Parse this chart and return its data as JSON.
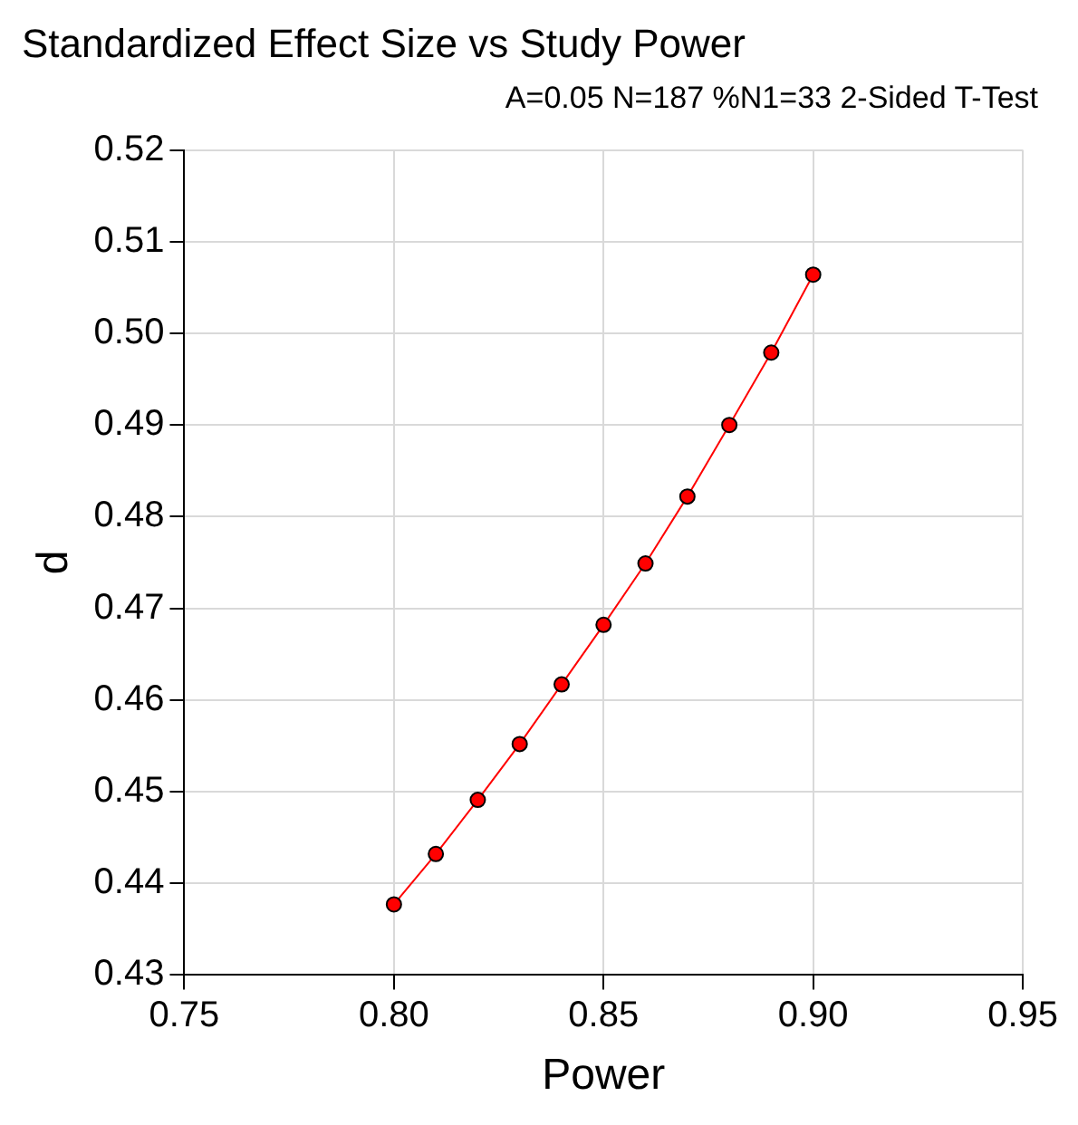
{
  "chart_data": {
    "type": "line",
    "title": "Standardized Effect Size vs Study Power",
    "subtitle": "A=0.05 N=187 %N1=33 2-Sided T-Test",
    "xlabel": "Power",
    "ylabel": "d",
    "x": [
      0.8,
      0.81,
      0.82,
      0.83,
      0.84,
      0.85,
      0.86,
      0.87,
      0.88,
      0.89,
      0.9
    ],
    "series": [
      {
        "color": "#ff0000",
        "values": [
          0.4377,
          0.4432,
          0.4491,
          0.4552,
          0.4617,
          0.4682,
          0.4749,
          0.4822,
          0.49,
          0.4979,
          0.5064
        ]
      }
    ],
    "xlim": [
      0.75,
      0.95
    ],
    "xticks": [
      0.75,
      {
        "value": 0.8,
        "label": "0.80"
      },
      0.85,
      {
        "value": 0.9,
        "label": "0.90"
      },
      0.95
    ],
    "ylim": [
      0.43,
      0.52
    ],
    "yticks": [
      0.43,
      0.44,
      0.45,
      0.46,
      0.47,
      0.48,
      0.49,
      {
        "value": 0.5,
        "label": "0.50"
      },
      0.51,
      0.52
    ],
    "grid": true,
    "legend": false,
    "marker": "circle",
    "line_style": "solid"
  }
}
